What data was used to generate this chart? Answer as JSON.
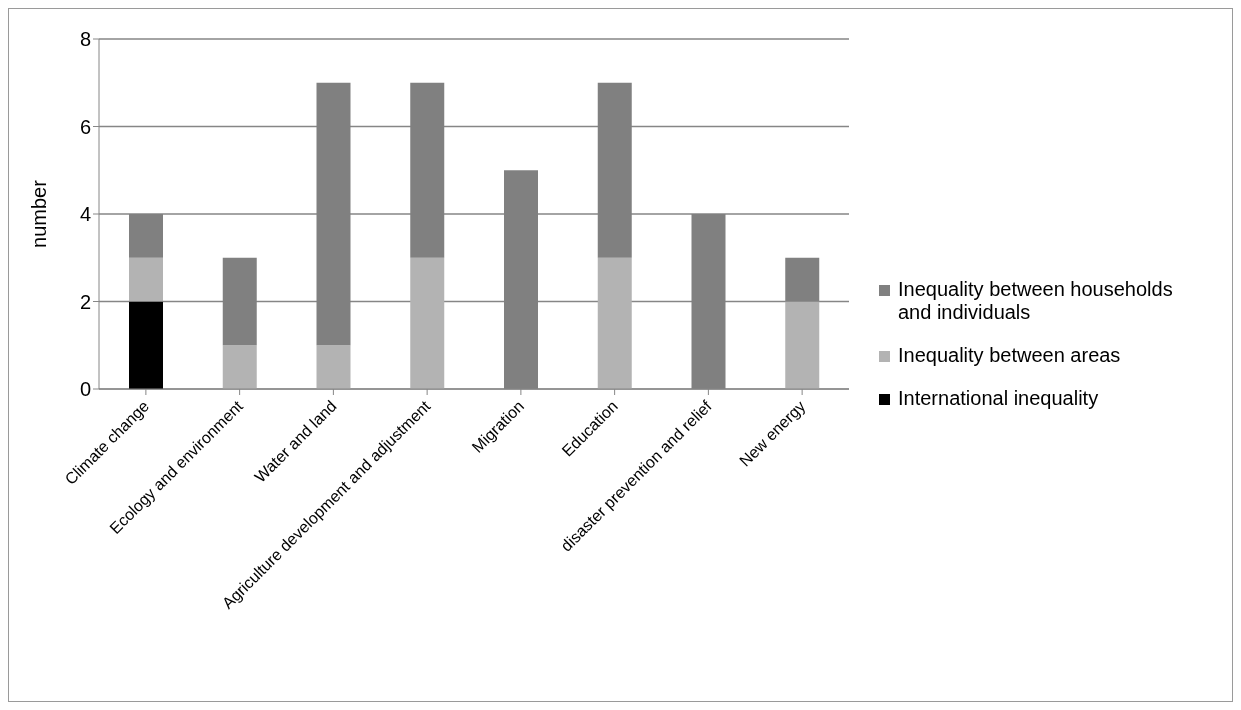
{
  "chart_data": {
    "type": "bar",
    "stacked": true,
    "ylabel": "number",
    "categories": [
      "Climate change",
      "Ecology and environment",
      "Water and land",
      "Agriculture development and adjustment",
      "Migration",
      "Education",
      "disaster prevention and relief",
      "New energy"
    ],
    "series": [
      {
        "name": "International inequality",
        "color": "#000000",
        "values": [
          2,
          0,
          0,
          0,
          0,
          0,
          0,
          0
        ]
      },
      {
        "name": "Inequality between areas",
        "color": "#b3b3b3",
        "values": [
          1,
          1,
          1,
          3,
          0,
          3,
          0,
          2
        ]
      },
      {
        "name": "Inequality between households and individuals",
        "color": "#808080",
        "values": [
          1,
          2,
          6,
          4,
          5,
          4,
          4,
          1
        ]
      }
    ],
    "ylim": [
      0,
      8
    ],
    "yticks": [
      0,
      2,
      4,
      6,
      8
    ],
    "grid": "y",
    "legend": "right"
  }
}
